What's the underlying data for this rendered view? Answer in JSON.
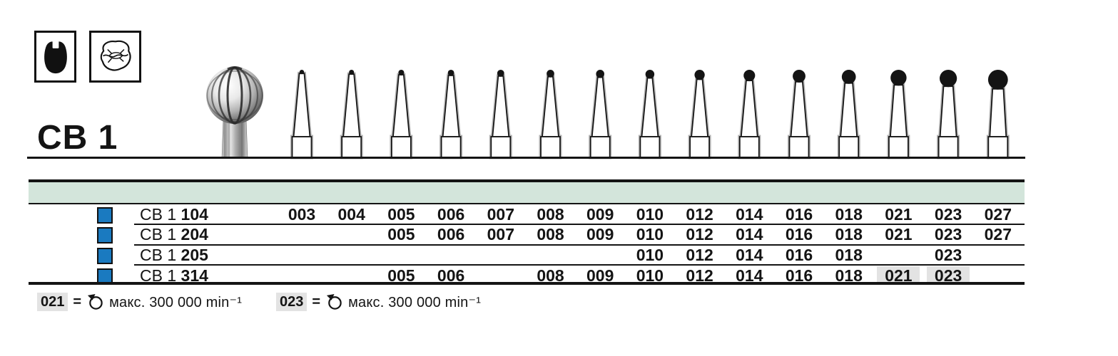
{
  "header": {
    "series_label": "CB 1",
    "indication_icons": [
      {
        "name": "tooth-crown-icon"
      },
      {
        "name": "tooth-occlusal-icon"
      }
    ]
  },
  "table": {
    "size_columns": [
      "003",
      "004",
      "005",
      "006",
      "007",
      "008",
      "009",
      "010",
      "012",
      "014",
      "016",
      "018",
      "021",
      "023",
      "027"
    ],
    "rows": [
      {
        "series": "CB 1",
        "shank_code": "104",
        "sizes": [
          "003",
          "004",
          "005",
          "006",
          "007",
          "008",
          "009",
          "010",
          "012",
          "014",
          "016",
          "018",
          "021",
          "023",
          "027"
        ],
        "highlighted_sizes": []
      },
      {
        "series": "CB 1",
        "shank_code": "204",
        "sizes": [
          "005",
          "006",
          "007",
          "008",
          "009",
          "010",
          "012",
          "014",
          "016",
          "018",
          "021",
          "023",
          "027"
        ],
        "highlighted_sizes": []
      },
      {
        "series": "CB 1",
        "shank_code": "205",
        "sizes": [
          "010",
          "012",
          "014",
          "016",
          "018",
          "023"
        ],
        "highlighted_sizes": []
      },
      {
        "series": "CB 1",
        "shank_code": "314",
        "sizes": [
          "005",
          "006",
          "008",
          "009",
          "010",
          "012",
          "014",
          "016",
          "018",
          "021",
          "023"
        ],
        "highlighted_sizes": [
          "021",
          "023"
        ]
      }
    ]
  },
  "footnotes": [
    {
      "size": "021",
      "operator": "=",
      "icon": "rotation-speed-icon",
      "text": "макс. 300 000 min⁻¹"
    },
    {
      "size": "023",
      "operator": "=",
      "icon": "rotation-speed-icon",
      "text": "макс. 300 000 min⁻¹"
    }
  ],
  "colors": {
    "accent_blue": "#1a7ac0",
    "band_teal": "#d3e5db",
    "highlight_gray": "#e3e3e3",
    "ink": "#141414"
  }
}
